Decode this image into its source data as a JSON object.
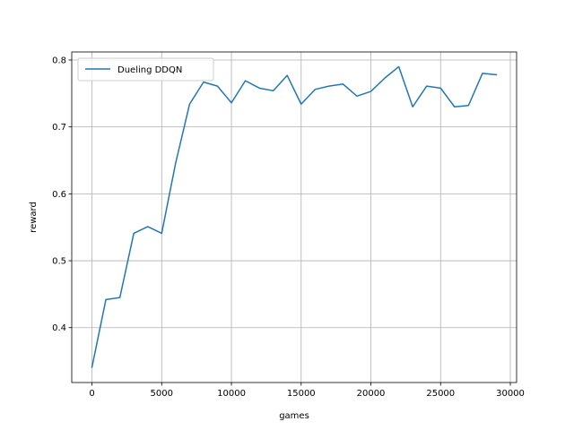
{
  "chart_data": {
    "type": "line",
    "title": "",
    "xlabel": "games",
    "ylabel": "reward",
    "xlim": [
      -1450,
      30450
    ],
    "ylim": [
      0.318,
      0.812
    ],
    "xticks": [
      0,
      5000,
      10000,
      15000,
      20000,
      25000,
      30000
    ],
    "xtick_labels": [
      "0",
      "5000",
      "10000",
      "15000",
      "20000",
      "25000",
      "30000"
    ],
    "yticks": [
      0.4,
      0.5,
      0.6,
      0.7,
      0.8
    ],
    "ytick_labels": [
      "0.4",
      "0.5",
      "0.6",
      "0.7",
      "0.8"
    ],
    "grid": true,
    "legend_position": "upper-left",
    "series": [
      {
        "name": "Dueling DDQN",
        "color": "#1f77b4",
        "x": [
          0,
          1000,
          2000,
          3000,
          4000,
          5000,
          6000,
          7000,
          8000,
          9000,
          10000,
          11000,
          12000,
          13000,
          14000,
          15000,
          16000,
          17000,
          18000,
          19000,
          20000,
          21000,
          22000,
          23000,
          24000,
          25000,
          26000,
          27000,
          28000,
          29000
        ],
        "y": [
          0.341,
          0.442,
          0.445,
          0.541,
          0.551,
          0.541,
          0.646,
          0.734,
          0.767,
          0.761,
          0.736,
          0.769,
          0.758,
          0.754,
          0.777,
          0.734,
          0.756,
          0.761,
          0.764,
          0.746,
          0.753,
          0.773,
          0.79,
          0.73,
          0.761,
          0.758,
          0.73,
          0.732,
          0.78,
          0.778
        ]
      }
    ]
  }
}
